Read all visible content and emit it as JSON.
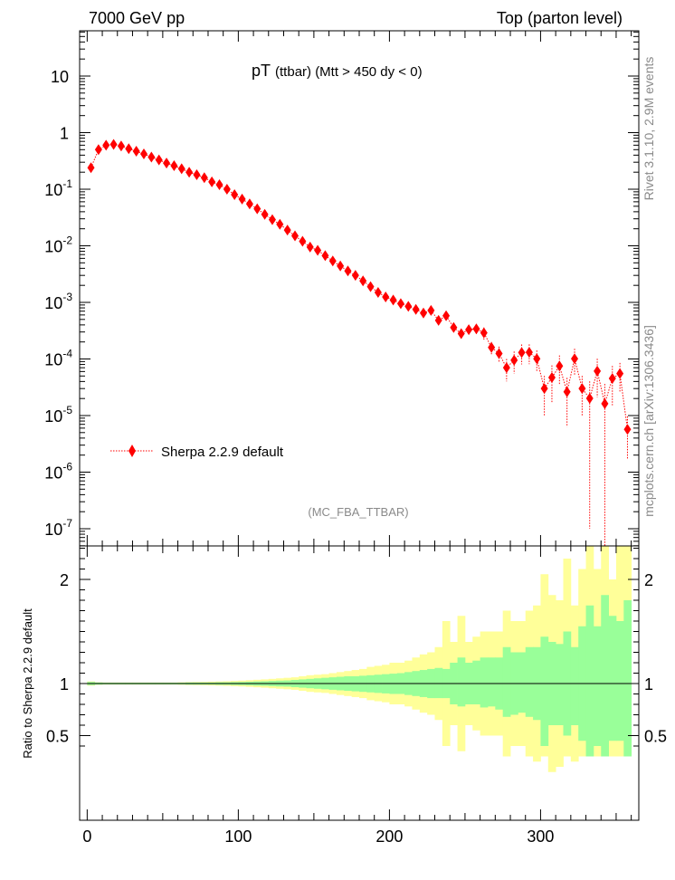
{
  "header": {
    "left": "7000 GeV pp",
    "right": "Top (parton level)"
  },
  "plot_title": {
    "main": "pT",
    "sub": "(ttbar) (Mtt > 450 dy < 0)"
  },
  "side_labels": {
    "rivet": "Rivet 3.1.10,  2.9M events",
    "mcplots": "mcplots.cern.ch [arXiv:1306.3436]"
  },
  "analysis_tag": "(MC_FBA_TTBAR)",
  "legend": {
    "label": "Sherpa 2.2.9 default"
  },
  "ratio_panel": {
    "ylabel": "Ratio to Sherpa 2.2.9 default"
  },
  "colors": {
    "marker": "#ff0000",
    "band_inner": "#99ff99",
    "band_outer": "#ffff99"
  },
  "chart_data": [
    {
      "type": "scatter",
      "title": "pT (ttbar) (Mtt > 450 dy < 0)",
      "xlim": [
        -5,
        365
      ],
      "ylim": [
        5e-08,
        60
      ],
      "yscale": "log",
      "ytick_labels": [
        "10",
        "1",
        "10^-1",
        "10^-2",
        "10^-3",
        "10^-4",
        "10^-5",
        "10^-6",
        "10^-7"
      ],
      "legend_position": "lower-left",
      "series": [
        {
          "name": "Sherpa 2.2.9 default",
          "x": [
            2.5,
            7.5,
            12.5,
            17.5,
            22.5,
            27.5,
            32.5,
            37.5,
            42.5,
            47.5,
            52.5,
            57.5,
            62.5,
            67.5,
            72.5,
            77.5,
            82.5,
            87.5,
            92.5,
            97.5,
            102.5,
            107.5,
            112.5,
            117.5,
            122.5,
            127.5,
            132.5,
            137.5,
            142.5,
            147.5,
            152.5,
            157.5,
            162.5,
            167.5,
            172.5,
            177.5,
            182.5,
            187.5,
            192.5,
            197.5,
            202.5,
            207.5,
            212.5,
            217.5,
            222.5,
            227.5,
            232.5,
            237.5,
            242.5,
            247.5,
            252.5,
            257.5,
            262.5,
            267.5,
            272.5,
            277.5,
            282.5,
            287.5,
            292.5,
            297.5,
            302.5,
            307.5,
            312.5,
            317.5,
            322.5,
            327.5,
            332.5,
            337.5,
            342.5,
            347.5,
            352.5,
            357.5
          ],
          "y": [
            0.24,
            0.5,
            0.6,
            0.62,
            0.58,
            0.52,
            0.47,
            0.42,
            0.37,
            0.33,
            0.29,
            0.26,
            0.23,
            0.2,
            0.18,
            0.16,
            0.135,
            0.12,
            0.1,
            0.08,
            0.067,
            0.055,
            0.045,
            0.036,
            0.029,
            0.024,
            0.019,
            0.015,
            0.012,
            0.0095,
            0.0083,
            0.0067,
            0.0054,
            0.0044,
            0.0036,
            0.003,
            0.0024,
            0.0019,
            0.0015,
            0.00125,
            0.0011,
            0.00095,
            0.00085,
            0.00075,
            0.00065,
            0.00072,
            0.00048,
            0.00058,
            0.00036,
            0.00028,
            0.00033,
            0.00034,
            0.00029,
            0.00016,
            0.000125,
            7.01e-05,
            9.52e-05,
            0.00013,
            0.000131,
            0.000101,
            3.01e-05,
            4.7e-05,
            7.53e-05,
            2.63e-05,
            0.000101,
            3.01e-05,
            2.01e-05,
            6.11e-05,
            1.62e-05,
            4.52e-05,
            5.53e-05,
            5.7e-06
          ],
          "y_err": [
            0.01,
            0.01,
            0.01,
            0.01,
            0.01,
            0.01,
            0.01,
            0.01,
            0.01,
            0.008,
            0.007,
            0.006,
            0.005,
            0.005,
            0.004,
            0.004,
            0.003,
            0.003,
            0.003,
            0.002,
            0.002,
            0.002,
            0.0015,
            0.0012,
            0.001,
            0.0009,
            0.0007,
            0.0006,
            0.0005,
            0.0004,
            0.00035,
            0.0003,
            0.00025,
            0.0002,
            0.00018,
            0.00015,
            0.00013,
            0.00011,
            0.0001,
            9e-05,
            8e-05,
            7e-05,
            6e-05,
            6e-05,
            6e-05,
            7e-05,
            6e-05,
            7e-05,
            6e-05,
            5e-05,
            6e-05,
            7e-05,
            7e-05,
            4e-05,
            4e-05,
            3e-05,
            4e-05,
            5e-05,
            5e-05,
            4e-05,
            2e-05,
            3e-05,
            4e-05,
            2e-05,
            5e-05,
            2e-05,
            2e-05,
            4e-05,
            2e-05,
            3e-05,
            3e-05,
            4e-06
          ]
        }
      ]
    },
    {
      "type": "area",
      "ylabel": "Ratio to Sherpa 2.2.9 default",
      "xlim": [
        -5,
        365
      ],
      "ylim": [
        0.35,
        2.35
      ],
      "ytick_labels": [
        "0.5",
        "1",
        "2"
      ],
      "xtick_labels": [
        "0",
        "100",
        "200",
        "300"
      ],
      "reference_line": 1,
      "bin_width": 5,
      "x": [
        2.5,
        7.5,
        12.5,
        17.5,
        22.5,
        27.5,
        32.5,
        37.5,
        42.5,
        47.5,
        52.5,
        57.5,
        62.5,
        67.5,
        72.5,
        77.5,
        82.5,
        87.5,
        92.5,
        97.5,
        102.5,
        107.5,
        112.5,
        117.5,
        122.5,
        127.5,
        132.5,
        137.5,
        142.5,
        147.5,
        152.5,
        157.5,
        162.5,
        167.5,
        172.5,
        177.5,
        182.5,
        187.5,
        192.5,
        197.5,
        202.5,
        207.5,
        212.5,
        217.5,
        222.5,
        227.5,
        232.5,
        237.5,
        242.5,
        247.5,
        252.5,
        257.5,
        262.5,
        267.5,
        272.5,
        277.5,
        282.5,
        287.5,
        292.5,
        297.5,
        302.5,
        307.5,
        312.5,
        317.5,
        322.5,
        327.5,
        332.5,
        337.5,
        342.5,
        347.5,
        352.5,
        357.5
      ],
      "series": [
        {
          "name": "",
          "band": "inner",
          "upper": [
            1.015,
            1.01,
            1.008,
            1.008,
            1.008,
            1.008,
            1.008,
            1.008,
            1.008,
            1.008,
            1.008,
            1.008,
            1.008,
            1.01,
            1.01,
            1.01,
            1.01,
            1.012,
            1.012,
            1.014,
            1.015,
            1.017,
            1.02,
            1.022,
            1.025,
            1.028,
            1.03,
            1.035,
            1.04,
            1.045,
            1.05,
            1.055,
            1.06,
            1.065,
            1.07,
            1.07,
            1.075,
            1.08,
            1.085,
            1.09,
            1.095,
            1.1,
            1.11,
            1.12,
            1.13,
            1.14,
            1.15,
            1.14,
            1.2,
            1.25,
            1.2,
            1.22,
            1.25,
            1.25,
            1.25,
            1.35,
            1.3,
            1.3,
            1.35,
            1.35,
            1.45,
            1.4,
            1.38,
            1.5,
            1.35,
            1.55,
            1.75,
            1.55,
            1.85,
            1.65,
            1.6,
            1.8
          ],
          "lower": [
            0.985,
            0.99,
            0.992,
            0.992,
            0.992,
            0.992,
            0.992,
            0.992,
            0.992,
            0.992,
            0.992,
            0.992,
            0.992,
            0.99,
            0.99,
            0.99,
            0.99,
            0.988,
            0.988,
            0.986,
            0.985,
            0.983,
            0.98,
            0.978,
            0.975,
            0.972,
            0.97,
            0.965,
            0.96,
            0.955,
            0.95,
            0.945,
            0.94,
            0.935,
            0.93,
            0.925,
            0.92,
            0.915,
            0.91,
            0.905,
            0.9,
            0.9,
            0.89,
            0.88,
            0.87,
            0.86,
            0.86,
            0.86,
            0.8,
            0.78,
            0.8,
            0.8,
            0.77,
            0.78,
            0.75,
            0.68,
            0.7,
            0.72,
            0.68,
            0.65,
            0.4,
            0.6,
            0.6,
            0.5,
            0.6,
            0.45,
            0.3,
            0.4,
            0.3,
            0.45,
            0.45,
            0.3
          ]
        },
        {
          "name": "",
          "band": "outer",
          "upper": [
            1.02,
            1.012,
            1.01,
            1.01,
            1.01,
            1.01,
            1.01,
            1.01,
            1.01,
            1.01,
            1.01,
            1.01,
            1.012,
            1.014,
            1.015,
            1.016,
            1.018,
            1.02,
            1.022,
            1.025,
            1.028,
            1.032,
            1.036,
            1.04,
            1.045,
            1.05,
            1.055,
            1.06,
            1.07,
            1.08,
            1.085,
            1.09,
            1.1,
            1.11,
            1.12,
            1.13,
            1.14,
            1.16,
            1.17,
            1.18,
            1.2,
            1.2,
            1.22,
            1.25,
            1.28,
            1.3,
            1.35,
            1.6,
            1.4,
            1.65,
            1.4,
            1.45,
            1.5,
            1.5,
            1.5,
            1.7,
            1.6,
            1.6,
            1.7,
            1.75,
            2.05,
            1.85,
            1.8,
            2.2,
            1.75,
            2.1,
            2.4,
            2.1,
            2.4,
            2.0,
            2.4,
            2.4
          ],
          "lower": [
            0.98,
            0.988,
            0.99,
            0.99,
            0.99,
            0.99,
            0.99,
            0.99,
            0.99,
            0.99,
            0.99,
            0.99,
            0.988,
            0.986,
            0.985,
            0.984,
            0.982,
            0.98,
            0.978,
            0.975,
            0.972,
            0.968,
            0.964,
            0.96,
            0.955,
            0.95,
            0.945,
            0.94,
            0.93,
            0.92,
            0.915,
            0.91,
            0.9,
            0.89,
            0.88,
            0.87,
            0.86,
            0.84,
            0.83,
            0.82,
            0.8,
            0.8,
            0.78,
            0.75,
            0.72,
            0.7,
            0.65,
            0.4,
            0.6,
            0.35,
            0.6,
            0.55,
            0.5,
            0.5,
            0.5,
            0.3,
            0.4,
            0.4,
            0.3,
            0.25,
            0.3,
            0.15,
            0.2,
            0.3,
            0.25,
            0.3,
            0.3,
            0.3,
            0.3,
            0.3,
            0.3,
            0.3
          ]
        }
      ]
    }
  ]
}
